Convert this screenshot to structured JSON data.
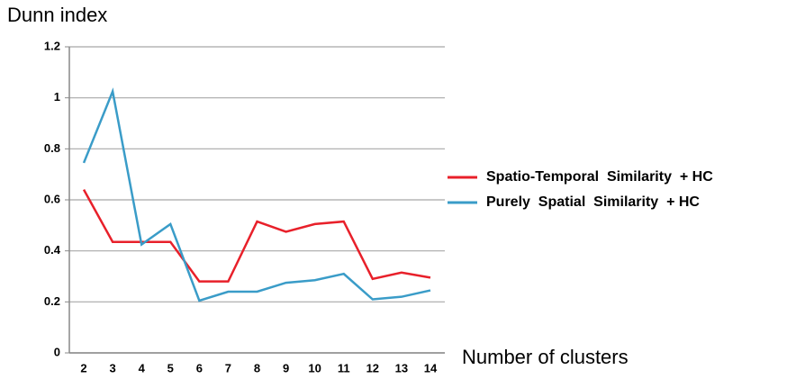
{
  "chart_data": {
    "type": "line",
    "y_label": "Dunn index",
    "x_label": "Number of clusters",
    "categories": [
      "2",
      "3",
      "4",
      "5",
      "6",
      "7",
      "8",
      "9",
      "10",
      "11",
      "12",
      "13",
      "14"
    ],
    "series": [
      {
        "name": "Spatio-Temporal  Similarity  + HC",
        "color": "#e8202a",
        "values": [
          0.64,
          0.435,
          0.435,
          0.435,
          0.28,
          0.28,
          0.515,
          0.475,
          0.505,
          0.515,
          0.29,
          0.315,
          0.295
        ]
      },
      {
        "name": "Purely  Spatial  Similarity  + HC",
        "color": "#3a9cc8",
        "values": [
          0.745,
          1.025,
          0.425,
          0.505,
          0.205,
          0.24,
          0.24,
          0.275,
          0.285,
          0.31,
          0.21,
          0.22,
          0.245
        ]
      }
    ],
    "ylim": [
      0,
      1.2
    ],
    "yticks": [
      0,
      0.2,
      0.4,
      0.6,
      0.8,
      1,
      1.2
    ],
    "grid": true,
    "legend": "right"
  }
}
